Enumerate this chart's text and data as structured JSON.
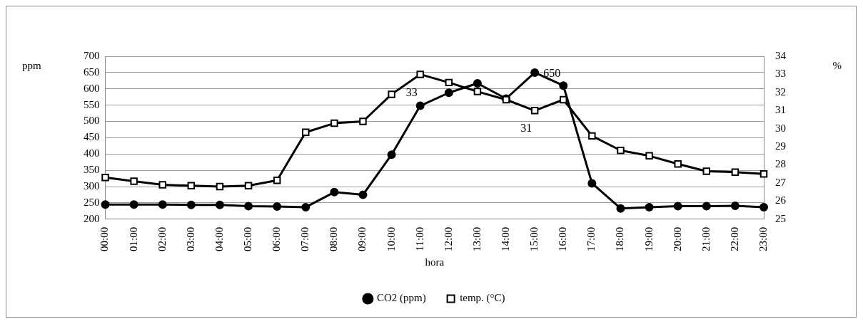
{
  "chart_data": {
    "type": "line",
    "xlabel": "hora",
    "ylabel": "ppm",
    "y2label": "%",
    "categories": [
      "00:00",
      "01:00",
      "02:00",
      "03:00",
      "04:00",
      "05:00",
      "06:00",
      "07:00",
      "08:00",
      "09:00",
      "10:00",
      "11:00",
      "12:00",
      "13:00",
      "14:00",
      "15:00",
      "16:00",
      "17:00",
      "18:00",
      "19:00",
      "20:00",
      "21:00",
      "22:00",
      "23:00"
    ],
    "series": [
      {
        "name": "CO2 (ppm)",
        "color": "#000000",
        "marker": "circle",
        "values": [
          245,
          245,
          245,
          244,
          244,
          240,
          239,
          237,
          283,
          275,
          398,
          548,
          588,
          617,
          570,
          650,
          610,
          310,
          233,
          237,
          240,
          240,
          241,
          237
        ],
        "value_labels": [
          null,
          null,
          null,
          null,
          null,
          null,
          null,
          null,
          null,
          null,
          null,
          null,
          null,
          null,
          null,
          "650",
          null,
          null,
          null,
          null,
          null,
          null,
          null,
          null
        ]
      },
      {
        "name": "temp. (°C)",
        "color": "#000000",
        "marker": "square",
        "axis": "y2",
        "values": [
          27.3,
          27.1,
          26.9,
          26.85,
          26.8,
          26.85,
          27.15,
          29.8,
          30.3,
          30.4,
          31.9,
          33,
          32.55,
          32.05,
          31.6,
          31,
          31.6,
          29.6,
          28.8,
          28.5,
          28.05,
          27.65,
          27.6,
          27.5
        ],
        "value_labels": [
          null,
          null,
          null,
          null,
          null,
          null,
          null,
          null,
          null,
          null,
          null,
          "33",
          null,
          null,
          null,
          "31",
          null,
          null,
          null,
          null,
          null,
          null,
          null,
          null
        ]
      }
    ],
    "ylim": [
      200,
      700
    ],
    "yticks": [
      200,
      250,
      300,
      350,
      400,
      450,
      500,
      550,
      600,
      650,
      700
    ],
    "y2lim": [
      25,
      34
    ],
    "y2ticks": [
      25,
      26,
      27,
      28,
      29,
      30,
      31,
      32,
      33,
      34
    ],
    "grid": "y",
    "legend": "bottom",
    "line_style": "solid"
  }
}
